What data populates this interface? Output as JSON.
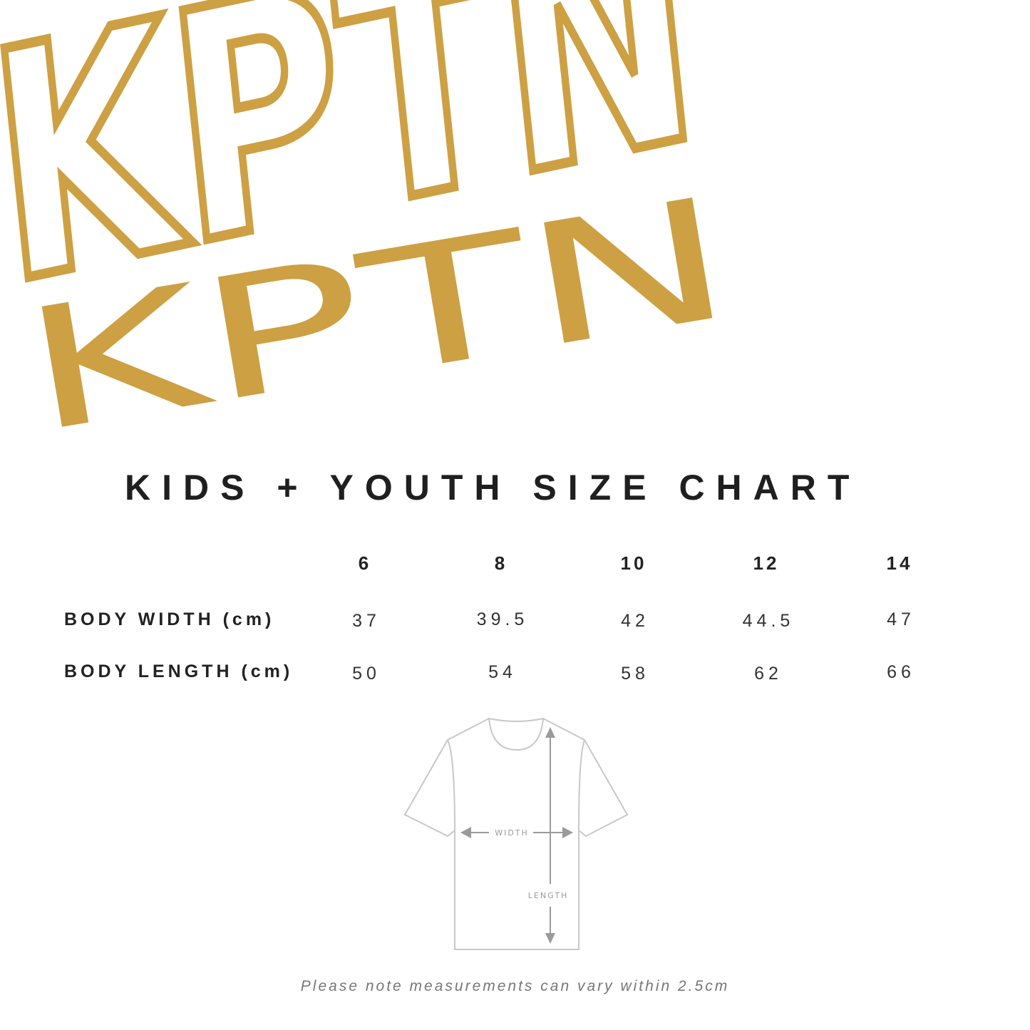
{
  "logo": {
    "text_outline": "KPTN",
    "text_filled": "KPTN",
    "color": "#CDA043"
  },
  "title": "KIDS + YOUTH SIZE CHART",
  "table": {
    "columns": [
      "6",
      "8",
      "10",
      "12",
      "14"
    ],
    "rows": [
      {
        "label": "BODY WIDTH (cm)",
        "values": [
          "37",
          "39.5",
          "42",
          "44.5",
          "47"
        ]
      },
      {
        "label": "BODY LENGTH (cm)",
        "values": [
          "50",
          "54",
          "58",
          "62",
          "66"
        ]
      }
    ]
  },
  "diagram": {
    "width_label": "WIDTH",
    "length_label": "LENGTH",
    "line_color": "#c8c8c8",
    "arrow_color": "#9a9a9a"
  },
  "note": "Please note measurements can vary within 2.5cm"
}
